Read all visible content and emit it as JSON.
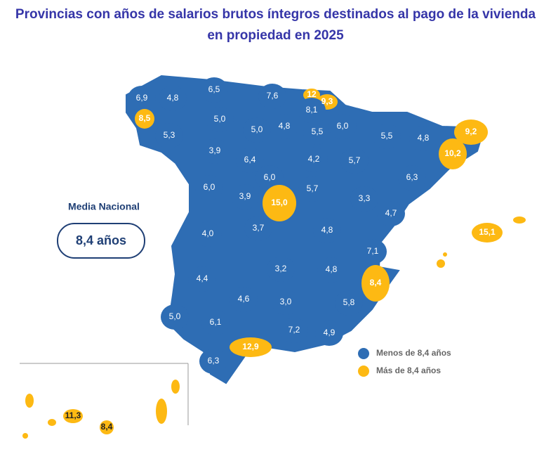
{
  "title": "Provincias con años de salarios brutos íntegros destinados al pago de la vivienda en propiedad en 2025",
  "national_average": {
    "label": "Media Nacional",
    "value": "8,4 años"
  },
  "legend": [
    {
      "label": "Menos de 8,4 años",
      "color": "#2e6db4"
    },
    {
      "label": "Más de 8,4 años",
      "color": "#fdb913"
    }
  ],
  "provinces": [
    {
      "label": "6,9",
      "color": "#2e6db4"
    },
    {
      "label": "4,8",
      "color": "#2e6db4"
    },
    {
      "label": "6,5",
      "color": "#2e6db4"
    },
    {
      "label": "7,6",
      "color": "#2e6db4"
    },
    {
      "label": "12",
      "color": "#fdb913"
    },
    {
      "label": "9,3",
      "color": "#fdb913"
    },
    {
      "label": "8,1",
      "color": "#2e6db4"
    },
    {
      "label": "8,5",
      "color": "#fdb913"
    },
    {
      "label": "5,0",
      "color": "#2e6db4"
    },
    {
      "label": "5,0",
      "color": "#2e6db4"
    },
    {
      "label": "4,8",
      "color": "#2e6db4"
    },
    {
      "label": "5,5",
      "color": "#2e6db4"
    },
    {
      "label": "6,0",
      "color": "#2e6db4"
    },
    {
      "label": "5,5",
      "color": "#2e6db4"
    },
    {
      "label": "4,8",
      "color": "#2e6db4"
    },
    {
      "label": "9,2",
      "color": "#fdb913"
    },
    {
      "label": "10,2",
      "color": "#fdb913"
    },
    {
      "label": "5,3",
      "color": "#2e6db4"
    },
    {
      "label": "3,9",
      "color": "#2e6db4"
    },
    {
      "label": "6,4",
      "color": "#2e6db4"
    },
    {
      "label": "4,2",
      "color": "#2e6db4"
    },
    {
      "label": "5,7",
      "color": "#2e6db4"
    },
    {
      "label": "6,0",
      "color": "#2e6db4"
    },
    {
      "label": "6,3",
      "color": "#2e6db4"
    },
    {
      "label": "6,0",
      "color": "#2e6db4"
    },
    {
      "label": "5,7",
      "color": "#2e6db4"
    },
    {
      "label": "3,9",
      "color": "#2e6db4"
    },
    {
      "label": "15,0",
      "color": "#fdb913"
    },
    {
      "label": "3,3",
      "color": "#2e6db4"
    },
    {
      "label": "4,7",
      "color": "#2e6db4"
    },
    {
      "label": "15,1",
      "color": "#fdb913"
    },
    {
      "label": "4,0",
      "color": "#2e6db4"
    },
    {
      "label": "3,7",
      "color": "#2e6db4"
    },
    {
      "label": "4,8",
      "color": "#2e6db4"
    },
    {
      "label": "7,1",
      "color": "#2e6db4"
    },
    {
      "label": "3,2",
      "color": "#2e6db4"
    },
    {
      "label": "4,8",
      "color": "#2e6db4"
    },
    {
      "label": "8,4",
      "color": "#fdb913"
    },
    {
      "label": "4,4",
      "color": "#2e6db4"
    },
    {
      "label": "4,6",
      "color": "#2e6db4"
    },
    {
      "label": "3,0",
      "color": "#2e6db4"
    },
    {
      "label": "5,8",
      "color": "#2e6db4"
    },
    {
      "label": "5,0",
      "color": "#2e6db4"
    },
    {
      "label": "6,1",
      "color": "#2e6db4"
    },
    {
      "label": "7,2",
      "color": "#2e6db4"
    },
    {
      "label": "4,9",
      "color": "#2e6db4"
    },
    {
      "label": "12,9",
      "color": "#fdb913"
    },
    {
      "label": "6,3",
      "color": "#2e6db4"
    },
    {
      "label": "11,3",
      "color": "#fdb913"
    },
    {
      "label": "8,4",
      "color": "#fdb913"
    }
  ]
}
